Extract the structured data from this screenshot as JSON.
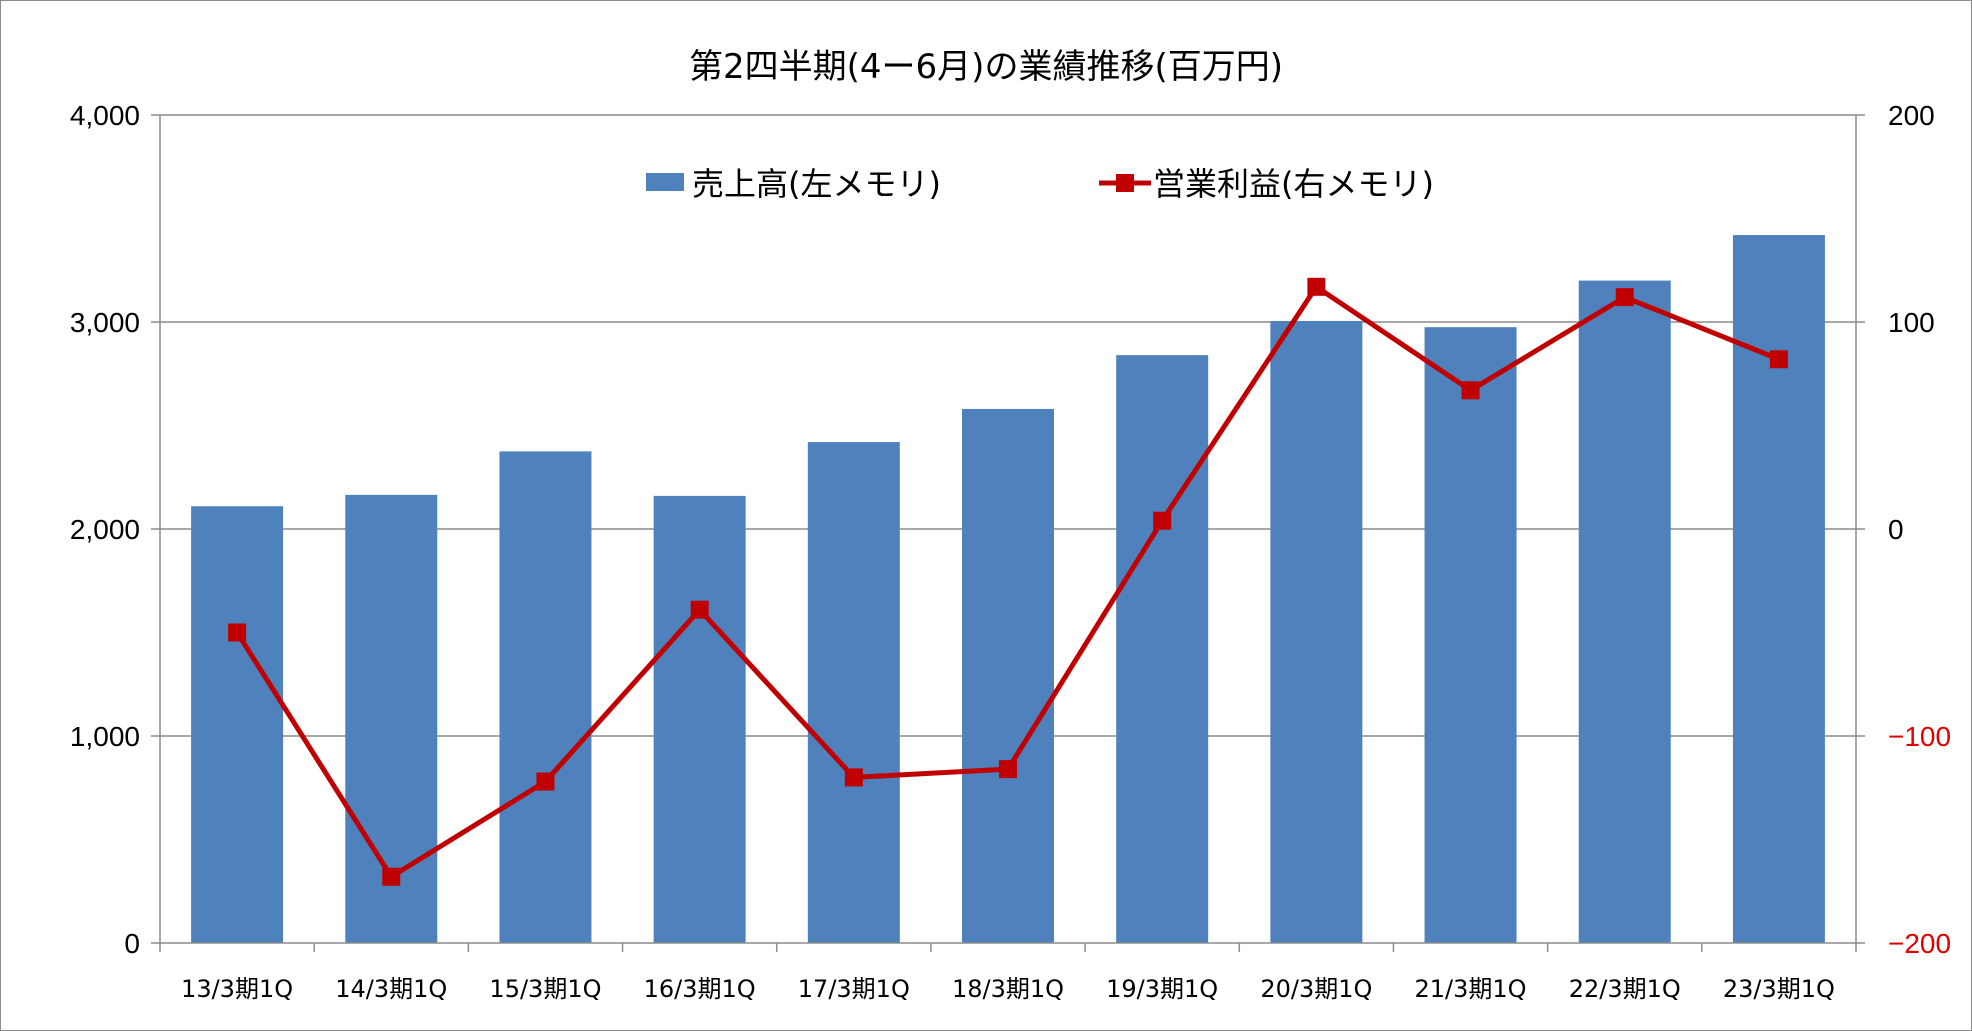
{
  "chart_data": {
    "type": "bar",
    "title": "第2四半期(4ー6月)の業績推移(百万円)",
    "categories": [
      "13/3期1Q",
      "14/3期1Q",
      "15/3期1Q",
      "16/3期1Q",
      "17/3期1Q",
      "18/3期1Q",
      "19/3期1Q",
      "20/3期1Q",
      "21/3期1Q",
      "22/3期1Q",
      "23/3期1Q"
    ],
    "series": [
      {
        "name": "売上高(左メモリ)",
        "type": "bar",
        "axis": "left",
        "color": "#4f81bd",
        "values": [
          2110,
          2165,
          2375,
          2160,
          2420,
          2580,
          2840,
          3005,
          2975,
          3200,
          3420
        ]
      },
      {
        "name": "営業利益(右メモリ)",
        "type": "line",
        "axis": "right",
        "color": "#c00000",
        "values": [
          -50,
          -168,
          -122,
          -39,
          -120,
          -116,
          4,
          117,
          67,
          112,
          82
        ]
      }
    ],
    "y_left": {
      "range": [
        0,
        4000
      ],
      "ticks": [
        0,
        1000,
        2000,
        3000,
        4000
      ],
      "tick_labels": [
        "0",
        "1,000",
        "2,000",
        "3,000",
        "4,000"
      ]
    },
    "y_right": {
      "range": [
        -200,
        200
      ],
      "ticks": [
        -200,
        -100,
        0,
        100,
        200
      ],
      "tick_labels": [
        "−200",
        "−100",
        "0",
        "100",
        "200"
      ],
      "negative_label_color": "#e00000"
    },
    "grid": true,
    "legend_position": "top-center",
    "xlabel": "",
    "ylabel": ""
  }
}
